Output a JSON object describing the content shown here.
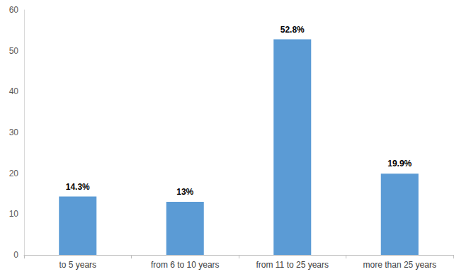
{
  "chart_data": {
    "type": "bar",
    "categories": [
      "to 5 years",
      "from 6 to 10 years",
      "from 11 to 25 years",
      "more than 25 years"
    ],
    "values": [
      14.3,
      13,
      52.8,
      19.9
    ],
    "value_labels": [
      "14.3%",
      "13%",
      "52.8%",
      "19.9%"
    ],
    "data_labels": true,
    "color": "#5b9bd5",
    "ylim": [
      0,
      60
    ],
    "yticks": [
      0,
      10,
      20,
      30,
      40,
      50,
      60
    ],
    "grid": false
  }
}
